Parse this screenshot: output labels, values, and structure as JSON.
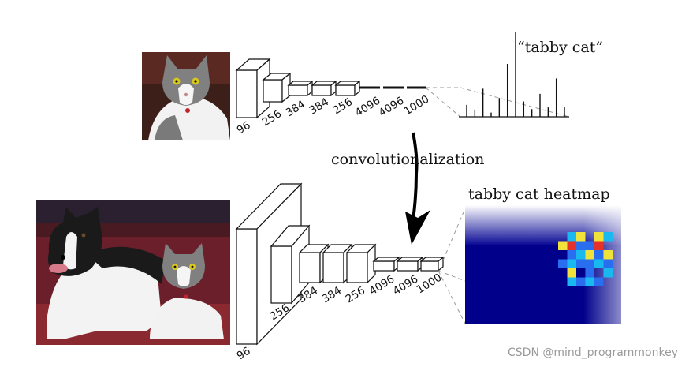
{
  "top_pipeline": {
    "output_label": "“tabby cat”",
    "layer_labels": [
      "96",
      "256",
      "384",
      "384",
      "256",
      "4096",
      "4096",
      "1000"
    ],
    "prediction_bars": [
      0.14,
      0.08,
      0.33,
      0.05,
      0.22,
      0.62,
      1.0,
      0.18,
      0.09,
      0.27,
      0.11,
      0.45,
      0.12
    ]
  },
  "middle_label": "convolutionalization",
  "bottom_pipeline": {
    "output_label": "tabby cat heatmap",
    "layer_labels": [
      "96",
      "256",
      "384",
      "384",
      "256",
      "4096",
      "4096",
      "1000"
    ]
  },
  "watermark": "CSDN @mind_programmonkey",
  "colors": {
    "heatmap_background": "#00008b",
    "heatmap_low": "#1ab8f0",
    "heatmap_high": "#e6302a"
  }
}
